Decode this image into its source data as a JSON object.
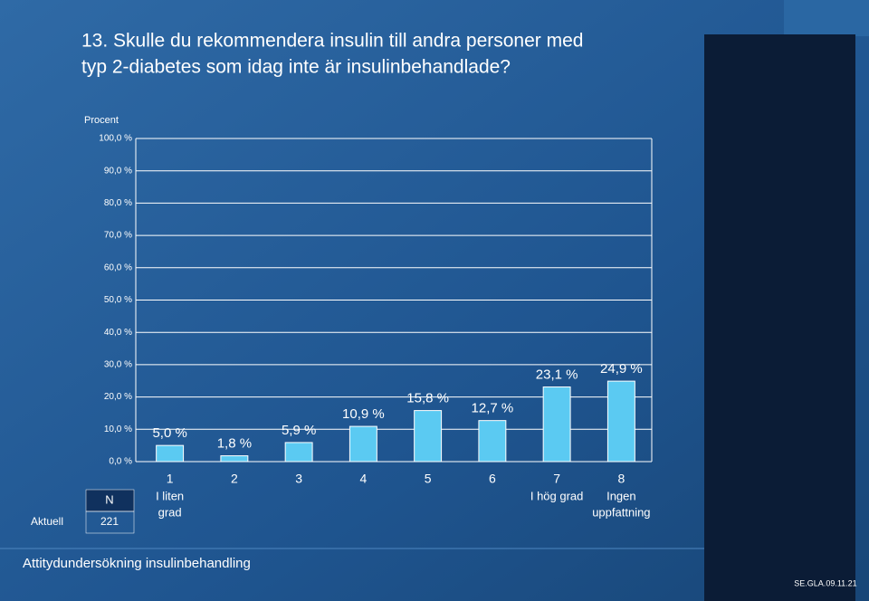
{
  "chart_data": {
    "type": "bar",
    "title": [
      "13. Skulle du rekommendera insulin till andra personer med",
      "typ 2-diabetes som idag inte är insulinbehandlade?"
    ],
    "y_axis_label": "Procent",
    "categories": [
      "1",
      "2",
      "3",
      "4",
      "5",
      "6",
      "7",
      "8"
    ],
    "category_descriptions": [
      [
        "I liten",
        "grad"
      ],
      null,
      null,
      null,
      null,
      null,
      [
        "I hög grad"
      ],
      [
        "Ingen",
        "uppfattning"
      ]
    ],
    "values": [
      5.0,
      1.8,
      5.9,
      10.9,
      15.8,
      12.7,
      23.1,
      24.9
    ],
    "value_labels": [
      "5,0 %",
      "1,8 %",
      "5,9 %",
      "10,9 %",
      "15,8 %",
      "12,7 %",
      "23,1 %",
      "24,9 %"
    ],
    "color": "#5bcaf2",
    "ylim": [
      0,
      100
    ],
    "yticks": [
      {
        "value": 0,
        "label": "0,0 %"
      },
      {
        "value": 10,
        "label": "10,0 %"
      },
      {
        "value": 20,
        "label": "20,0 %"
      },
      {
        "value": 30,
        "label": "30,0 %"
      },
      {
        "value": 40,
        "label": "40,0 %"
      },
      {
        "value": 50,
        "label": "50,0 %"
      },
      {
        "value": 60,
        "label": "60,0 %"
      },
      {
        "value": 70,
        "label": "70,0 %"
      },
      {
        "value": 80,
        "label": "80,0 %"
      },
      {
        "value": 90,
        "label": "90,0 %"
      },
      {
        "value": 100,
        "label": "100,0 %"
      }
    ],
    "grid": true
  },
  "n_table": {
    "header": "N",
    "row_label": "Aktuell",
    "value": 221
  },
  "footer": "Attitydundersökning insulinbehandling",
  "code": "SE.GLA.09.11.21"
}
